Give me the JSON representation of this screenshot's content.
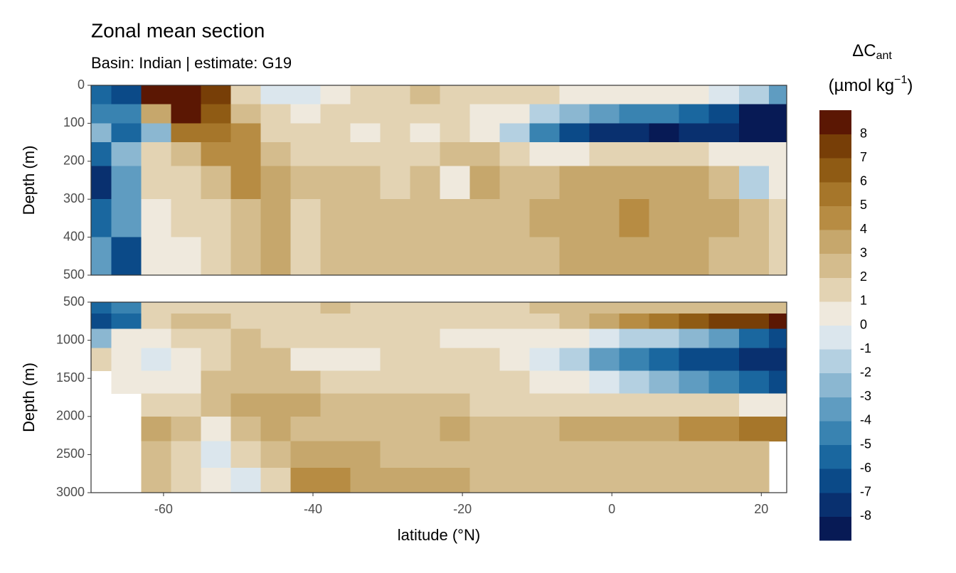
{
  "chart_data": {
    "type": "contour",
    "title": "Zonal mean section",
    "subtitle": "Basin: Indian | estimate: G19",
    "xlabel": "latitude (°N)",
    "xlim": [
      -69.7,
      23.4
    ],
    "xticks": [
      -60,
      -40,
      -20,
      0,
      20
    ],
    "x": [
      -69,
      -65,
      -61,
      -57,
      -53,
      -49,
      -45,
      -41,
      -37,
      -33,
      -29,
      -25,
      -21,
      -17,
      -13,
      -9,
      -5,
      -1,
      3,
      7,
      11,
      15,
      19,
      23
    ],
    "colorbar": {
      "title": {
        "main": "ΔC",
        "sub": "ant"
      },
      "unit": {
        "pre": "(µmol kg",
        "sup": "−1",
        "post": ")"
      },
      "limits": [
        -9,
        9
      ],
      "breaks": [
        -8,
        -7,
        -6,
        -5,
        -4,
        -3,
        -2,
        -1,
        0,
        1,
        2,
        3,
        4,
        5,
        6,
        7,
        8
      ],
      "colors": [
        "#071a55",
        "#09306f",
        "#0b4a88",
        "#1a679f",
        "#3983b1",
        "#5f9cc1",
        "#8bb7d1",
        "#b4d0e1",
        "#dbe6ed",
        "#efe9dd",
        "#e3d3b3",
        "#d4bc8d",
        "#c6a76c",
        "#b78c43",
        "#a6762a",
        "#8f5b14",
        "#773e07",
        "#5b1703"
      ]
    },
    "panels": [
      {
        "ylabel": "Depth (m)",
        "ylim": [
          0,
          500
        ],
        "yticks": [
          0,
          100,
          200,
          300,
          400,
          500
        ],
        "depth": [
          25,
          75,
          125,
          175,
          250,
          350,
          450
        ],
        "values": [
          [
            -6,
            -7,
            8,
            8.5,
            7,
            1.5,
            -1,
            -0.5,
            0.5,
            1.5,
            1.5,
            2.5,
            1.5,
            1.5,
            1.5,
            1.5,
            0.5,
            0.5,
            0.5,
            0.5,
            0.5,
            -0.5,
            -1.5,
            -3.5
          ],
          [
            -5,
            -5,
            3,
            8,
            6,
            2.5,
            1,
            0.5,
            1.5,
            1.5,
            1.5,
            1.5,
            1.5,
            0.5,
            0.5,
            -1.5,
            -2.5,
            -3.5,
            -4.5,
            -4.5,
            -5.5,
            -6.5,
            -8.5,
            -8.5
          ],
          [
            -3,
            -6,
            -3,
            5,
            5,
            4,
            1.5,
            1.5,
            1.5,
            0.5,
            1.5,
            0.5,
            1.5,
            0.5,
            -1.5,
            -4.5,
            -6.5,
            -7.5,
            -7.5,
            -8.5,
            -7.5,
            -7.5,
            -8.5,
            -8.5
          ],
          [
            -6,
            -3,
            1,
            2,
            4,
            4.5,
            2.5,
            1.5,
            1.5,
            1.5,
            1.5,
            1.5,
            2.5,
            2.5,
            1.5,
            0.5,
            0.5,
            1.5,
            1.5,
            1.5,
            1.5,
            0.5,
            0.5,
            0.5
          ],
          [
            -8,
            -4,
            1,
            1.5,
            2.5,
            4,
            3,
            2,
            2.5,
            2.5,
            1.5,
            2.5,
            0.5,
            3.5,
            2.5,
            2.5,
            3.5,
            3.5,
            3.5,
            3.5,
            3.5,
            2.5,
            -1.5,
            0.5
          ],
          [
            -6,
            -4,
            0.5,
            1.5,
            1.5,
            2.5,
            3.5,
            1.5,
            2.5,
            2.5,
            2.5,
            2.5,
            2.5,
            2.5,
            2.5,
            3.5,
            3.5,
            3.5,
            4.5,
            3.5,
            3.5,
            3.5,
            2.5,
            1.5
          ],
          [
            -4,
            -7,
            0.5,
            0.5,
            1.5,
            2.5,
            3,
            1.5,
            2.5,
            2.5,
            2.5,
            2.5,
            2.5,
            2.5,
            2.5,
            2.5,
            3.5,
            3.5,
            3.5,
            3.5,
            3.5,
            2.5,
            2.5,
            1.5
          ]
        ]
      },
      {
        "ylabel": "Depth (m)",
        "ylim": [
          500,
          3000
        ],
        "yticks": [
          500,
          1000,
          1500,
          2000,
          2500,
          3000
        ],
        "depth": [
          550,
          750,
          950,
          1250,
          1550,
          1850,
          2150,
          2500,
          2850
        ],
        "values": [
          [
            -6,
            -5,
            1.5,
            1.5,
            1.5,
            1.5,
            1.5,
            1.5,
            2.5,
            1.5,
            1.5,
            1.5,
            1.5,
            1.5,
            1.5,
            2.5,
            2.5,
            2.5,
            2.5,
            2.5,
            2.5,
            2.5,
            2.5,
            2.5
          ],
          [
            -7,
            -6,
            1.5,
            2.5,
            2.5,
            1.5,
            1.5,
            1.5,
            1.5,
            1.5,
            1.5,
            1.5,
            1.5,
            1.5,
            1.5,
            1.5,
            2.5,
            3.5,
            4.5,
            5.5,
            6.5,
            7.5,
            7.5,
            8.5
          ],
          [
            -3,
            0.5,
            0.5,
            1.5,
            1.5,
            2.5,
            1.5,
            1.5,
            1.5,
            1.5,
            1.5,
            1.5,
            0.5,
            0.5,
            0.5,
            0.5,
            0.5,
            -0.5,
            -1.5,
            -1.5,
            -2.5,
            -3.5,
            -5.5,
            -6.5
          ],
          [
            1.5,
            0.5,
            -0.5,
            0.5,
            1.5,
            2.5,
            2.5,
            0.5,
            0.5,
            0.5,
            1.5,
            1.5,
            1.5,
            1.5,
            0.5,
            -0.5,
            -1.5,
            -3.5,
            -4.5,
            -5.5,
            -6.5,
            -6.5,
            -7.5,
            -7.5
          ],
          [
            null,
            0.5,
            0.5,
            0.5,
            2.5,
            2.5,
            2.5,
            2.5,
            1.5,
            1.5,
            1.5,
            1.5,
            1.5,
            1.5,
            1.5,
            0.5,
            0.5,
            -0.5,
            -1.5,
            -2.5,
            -3.5,
            -4.5,
            -5.5,
            -6.5
          ],
          [
            null,
            null,
            1.5,
            1.5,
            2.5,
            3.5,
            3.5,
            3.5,
            2.5,
            2.5,
            2.5,
            2.5,
            2.5,
            1.5,
            1.5,
            1.5,
            1.5,
            1.5,
            1.5,
            1.5,
            1.5,
            1.5,
            0.5,
            0.5
          ],
          [
            null,
            null,
            3.5,
            2.5,
            0.5,
            2.5,
            3.5,
            2.5,
            2.5,
            2.5,
            2.5,
            2.5,
            3.5,
            2.5,
            2.5,
            2.5,
            3.5,
            3.5,
            3.5,
            3.5,
            4.5,
            4.5,
            5.5,
            5.5
          ],
          [
            null,
            null,
            2.5,
            1.5,
            -0.5,
            1.5,
            2.5,
            3.5,
            3.5,
            3.5,
            2.5,
            2.5,
            2.5,
            2.5,
            2.5,
            2.5,
            2.5,
            2.5,
            2.5,
            2.5,
            2.5,
            2.5,
            2.5,
            null
          ],
          [
            null,
            null,
            2.5,
            1.5,
            0.5,
            -0.5,
            1.5,
            4.5,
            4.5,
            3.5,
            3.5,
            3.5,
            3.5,
            2.5,
            2.5,
            2.5,
            2.5,
            2.5,
            2.5,
            2.5,
            2.5,
            2.5,
            2.5,
            null
          ]
        ]
      }
    ]
  }
}
